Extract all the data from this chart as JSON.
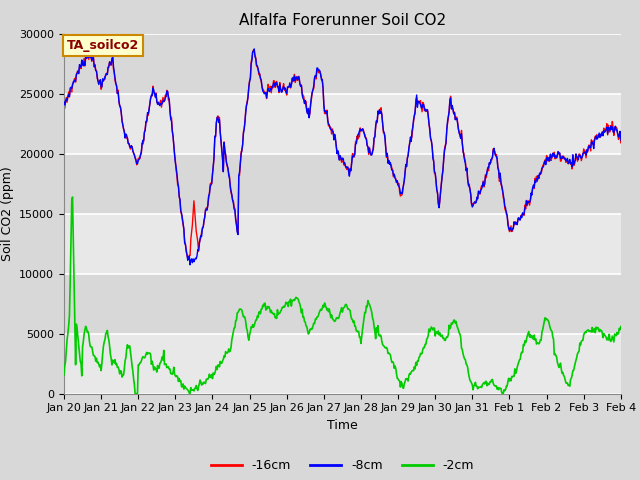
{
  "title": "Alfalfa Forerunner Soil CO2",
  "xlabel": "Time",
  "ylabel": "Soil CO2 (ppm)",
  "ylim": [
    0,
    30000
  ],
  "legend_label_box": "TA_soilco2",
  "legend_items": [
    "-16cm",
    "-8cm",
    "-2cm"
  ],
  "legend_colors": [
    "#ff0000",
    "#0000ff",
    "#00cc00"
  ],
  "tick_labels": [
    "Jan 20",
    "Jan 21",
    "Jan 22",
    "Jan 23",
    "Jan 24",
    "Jan 25",
    "Jan 26",
    "Jan 27",
    "Jan 28",
    "Jan 29",
    "Jan 30",
    "Jan 31",
    "Feb 1",
    "Feb 2",
    "Feb 3",
    "Feb 4"
  ],
  "n_days": 15,
  "yticks": [
    0,
    5000,
    10000,
    15000,
    20000,
    25000,
    30000
  ],
  "bg_color": "#d8d8d8",
  "grid_color": "#ffffff",
  "title_fontsize": 11,
  "axis_fontsize": 9,
  "tick_fontsize": 8
}
